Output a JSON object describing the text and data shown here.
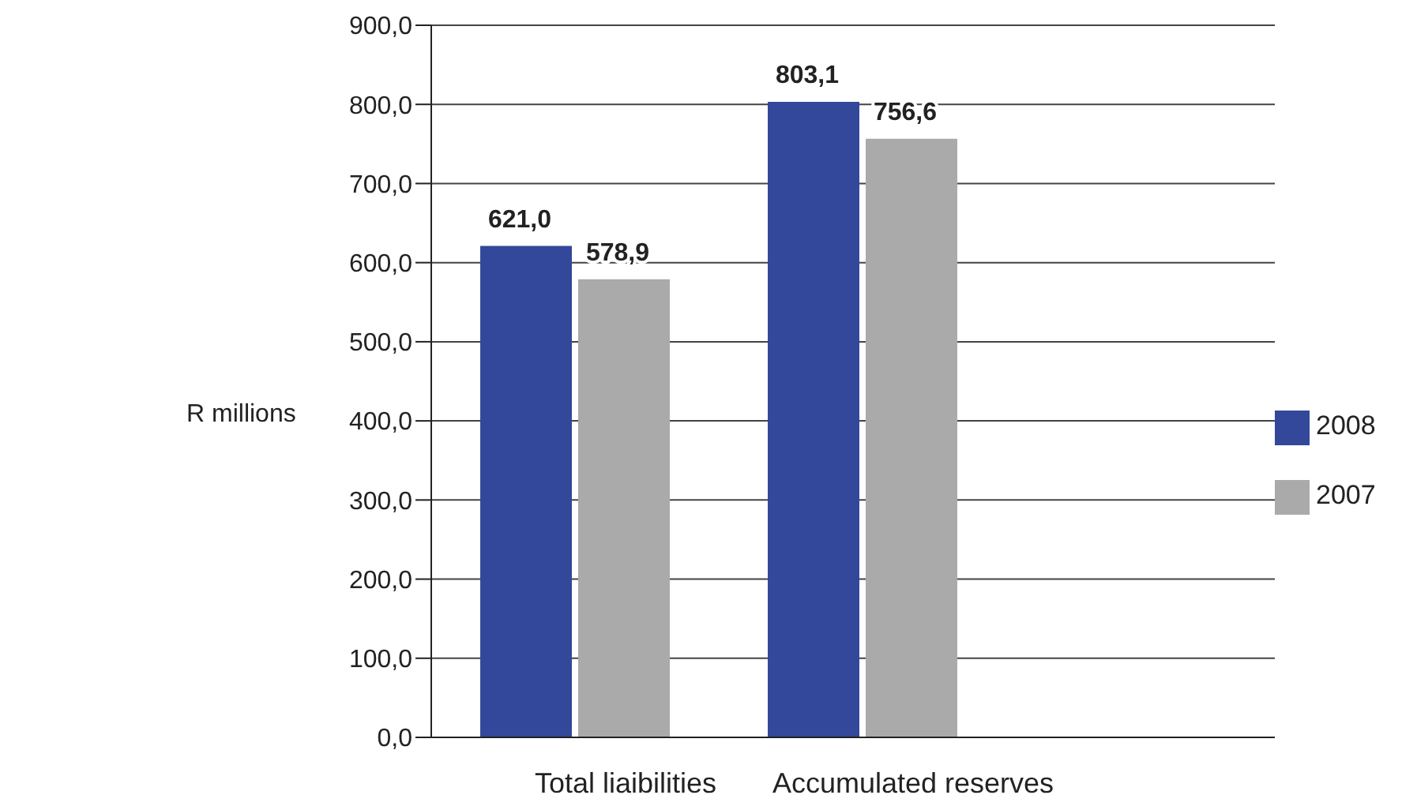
{
  "chart_data": {
    "type": "bar",
    "ylabel": "R millions",
    "categories": [
      "Total liaibilities",
      "Accumulated reserves"
    ],
    "series": [
      {
        "name": "2008",
        "color": "#33489a",
        "values": [
          621.0,
          803.1
        ],
        "value_labels": [
          "621,0",
          "803,1"
        ]
      },
      {
        "name": "2007",
        "color": "#aaaaaa",
        "values": [
          578.9,
          756.6
        ],
        "value_labels": [
          "578,9",
          "756,6"
        ]
      }
    ],
    "ylim": [
      0,
      900
    ],
    "yticks": [
      {
        "value": 0,
        "label": "0,0"
      },
      {
        "value": 100,
        "label": "100,0"
      },
      {
        "value": 200,
        "label": "200,0"
      },
      {
        "value": 300,
        "label": "300,0"
      },
      {
        "value": 400,
        "label": "400,0"
      },
      {
        "value": 500,
        "label": "500,0"
      },
      {
        "value": 600,
        "label": "600,0"
      },
      {
        "value": 700,
        "label": "700,0"
      },
      {
        "value": 800,
        "label": "800,0"
      },
      {
        "value": 900,
        "label": "900,0"
      }
    ],
    "grid": "y",
    "legend": "right"
  }
}
